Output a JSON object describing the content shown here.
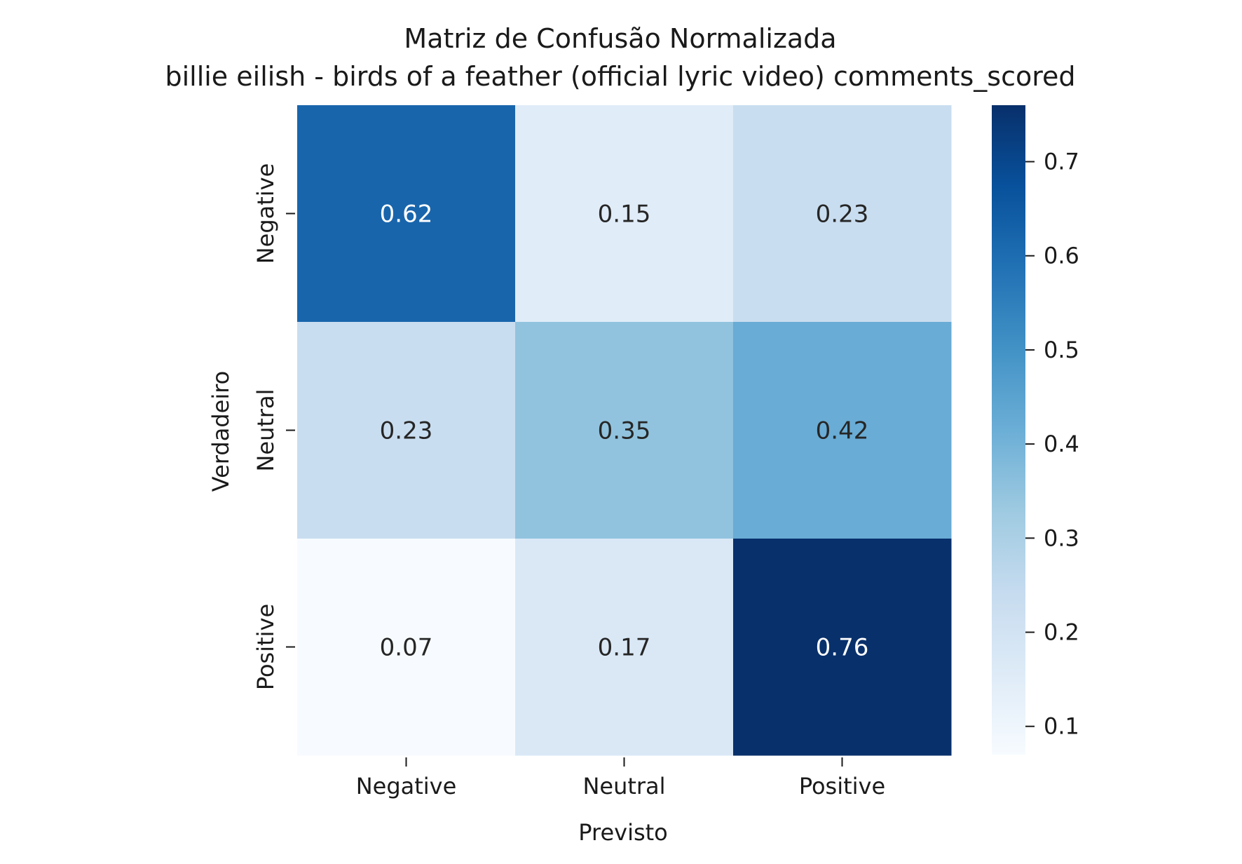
{
  "chart_data": {
    "type": "heatmap",
    "title": "Matriz de Confusão Normalizada",
    "subtitle": "billie eilish - birds of a feather (official lyric video) comments_scored",
    "xlabel": "Previsto",
    "ylabel": "Verdadeiro",
    "x_categories": [
      "Negative",
      "Neutral",
      "Positive"
    ],
    "y_categories": [
      "Negative",
      "Neutral",
      "Positive"
    ],
    "values": [
      [
        0.62,
        0.15,
        0.23
      ],
      [
        0.23,
        0.35,
        0.42
      ],
      [
        0.07,
        0.17,
        0.76
      ]
    ],
    "cell_labels": [
      [
        "0.62",
        "0.15",
        "0.23"
      ],
      [
        "0.23",
        "0.35",
        "0.42"
      ],
      [
        "0.07",
        "0.17",
        "0.76"
      ]
    ],
    "colormap": "Blues",
    "colorbar": {
      "range": [
        0.07,
        0.76
      ],
      "ticks": [
        0.1,
        0.2,
        0.3,
        0.4,
        0.5,
        0.6,
        0.7
      ],
      "tick_labels": [
        "0.1",
        "0.2",
        "0.3",
        "0.4",
        "0.5",
        "0.6",
        "0.7"
      ]
    },
    "colors": {
      "low": "#f7fbff",
      "high": "#08306b",
      "text_dark": "#262626",
      "text_light": "#ffffff"
    },
    "grid": false
  }
}
